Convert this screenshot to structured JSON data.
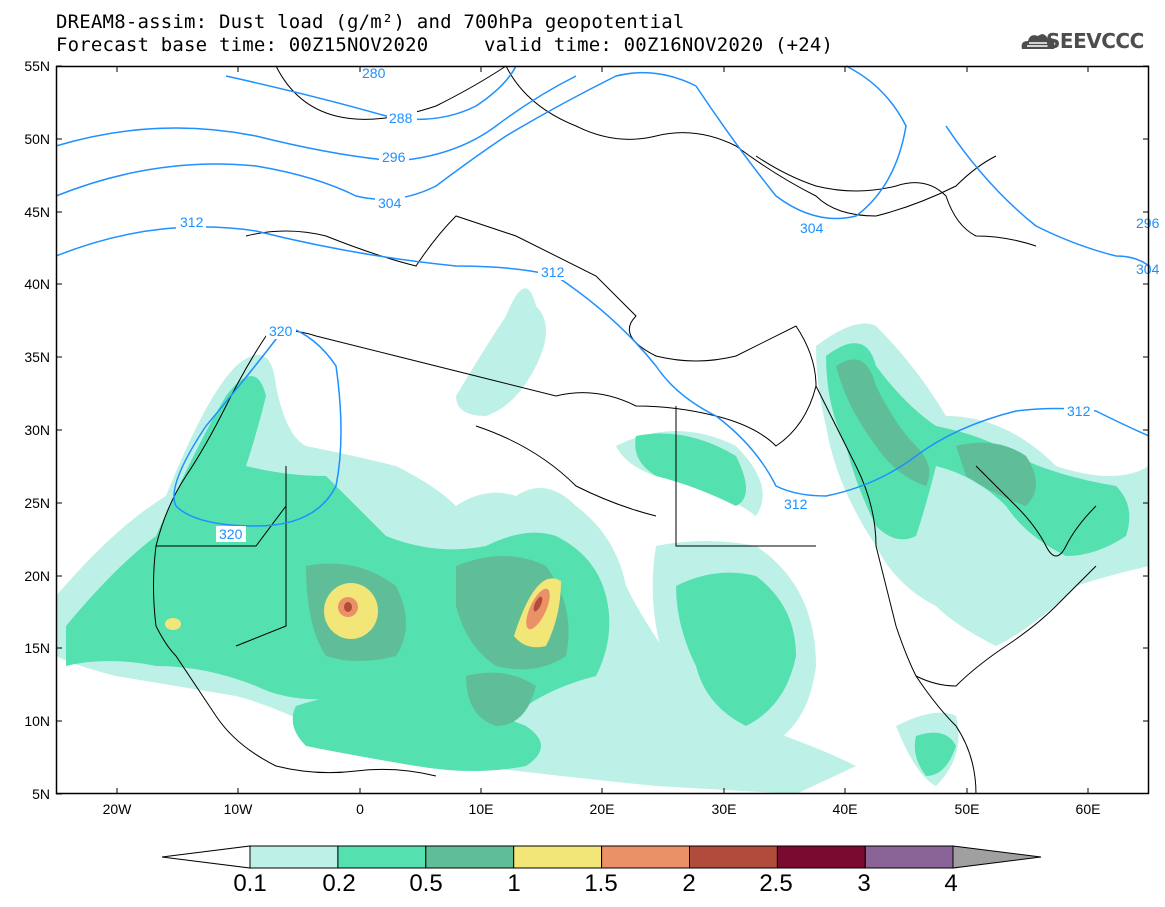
{
  "title": {
    "line1": "DREAM8-assim: Dust load (g/m²) and 700hPa geopotential",
    "line2": "Forecast base time: 00Z15NOV2020",
    "line3": "valid time: 00Z16NOV2020 (+24)"
  },
  "logo": {
    "text": "SEEVCCC",
    "icon": "cloud-icon"
  },
  "map": {
    "lon_range": [
      -25,
      65
    ],
    "lat_range": [
      5,
      55
    ],
    "lat_ticks": [
      "55N",
      "50N",
      "45N",
      "40N",
      "35N",
      "30N",
      "25N",
      "20N",
      "15N",
      "10N",
      "5N"
    ],
    "lon_ticks": [
      "20W",
      "10W",
      "0",
      "10E",
      "20E",
      "30E",
      "40E",
      "50E",
      "60E"
    ],
    "contour_labels": [
      "280",
      "288",
      "296",
      "304",
      "312",
      "312",
      "312",
      "320",
      "320",
      "312",
      "304",
      "296",
      "304"
    ]
  },
  "colorbar": {
    "labels": [
      "0.1",
      "0.2",
      "0.5",
      "1",
      "1.5",
      "2",
      "2.5",
      "3",
      "4"
    ],
    "colors": [
      "#bdf0e6",
      "#55e0b0",
      "#5fbe98",
      "#f2e678",
      "#eb9168",
      "#b14b3c",
      "#7a0a30",
      "#8a6496",
      "#a0a0a0"
    ]
  }
}
